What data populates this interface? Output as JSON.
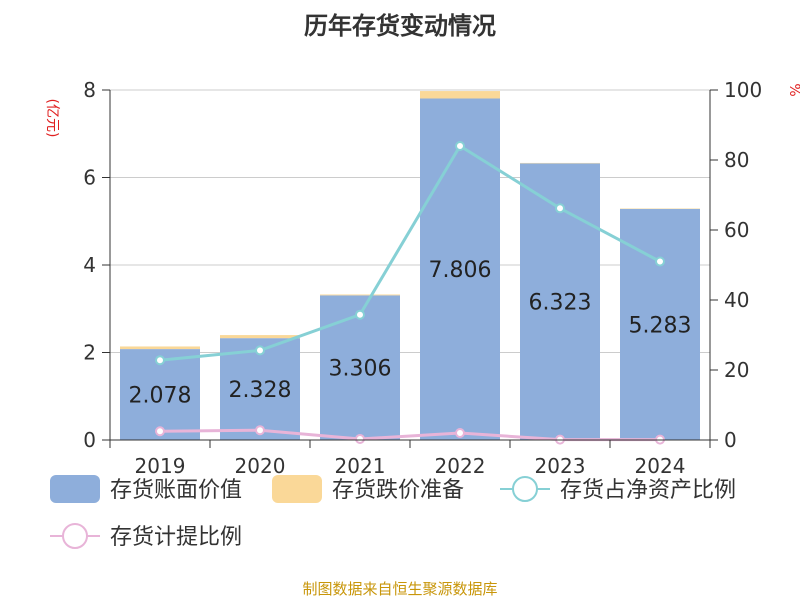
{
  "chart_data": {
    "type": "bar",
    "title": "历年存货变动情况",
    "categories": [
      "2019",
      "2020",
      "2021",
      "2022",
      "2023",
      "2024"
    ],
    "y_left_unit": "(亿元)",
    "y_right_unit": "%",
    "y_left_ticks": [
      "0",
      "2",
      "4",
      "6",
      "8"
    ],
    "y_right_ticks": [
      "0",
      "20",
      "40",
      "60",
      "80",
      "100"
    ],
    "ylim_left": [
      0,
      8
    ],
    "ylim_right": [
      0,
      100
    ],
    "grid": true,
    "legend_position": "bottom",
    "series": [
      {
        "name": "存货账面价值",
        "type": "bar",
        "stack": "inv",
        "axis": "left",
        "color": "#8eaedb",
        "values": [
          2.078,
          2.328,
          3.306,
          7.806,
          6.323,
          5.283
        ],
        "labels": [
          "2.078",
          "2.328",
          "3.306",
          "7.806",
          "6.323",
          "5.283"
        ]
      },
      {
        "name": "存货跌价准备",
        "type": "bar",
        "stack": "inv",
        "axis": "left",
        "color": "#fad898",
        "values": [
          0.06,
          0.07,
          0.02,
          0.17,
          0.01,
          0.01
        ]
      },
      {
        "name": "存货占净资产比例",
        "type": "line",
        "axis": "right",
        "color": "#86d0d5",
        "values": [
          22.8,
          25.6,
          35.8,
          84.0,
          66.2,
          51.0
        ]
      },
      {
        "name": "存货计提比例",
        "type": "line",
        "axis": "right",
        "color": "#e8b4d8",
        "values": [
          2.5,
          2.8,
          0.3,
          2.0,
          0.1,
          0.1
        ]
      }
    ]
  },
  "source": "制图数据来自恒生聚源数据库"
}
